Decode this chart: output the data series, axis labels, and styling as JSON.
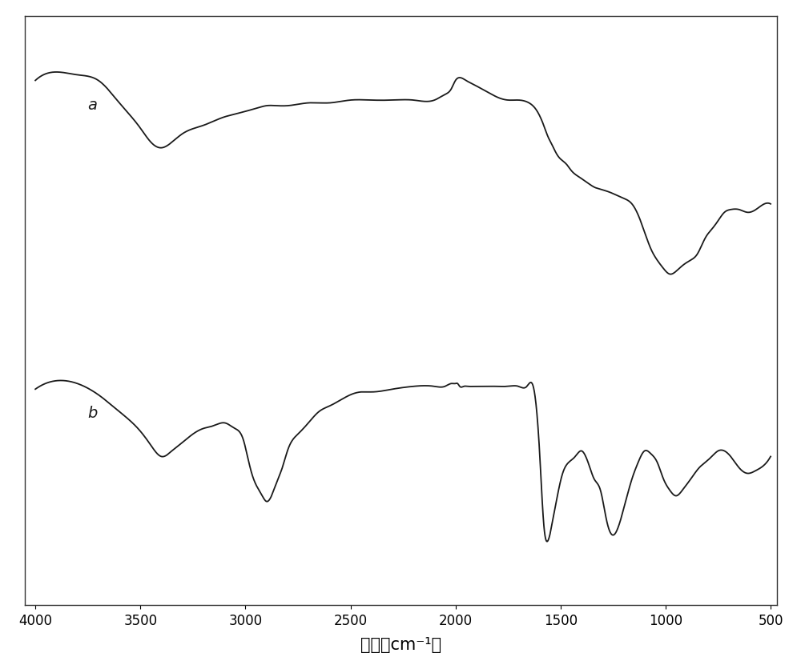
{
  "xlabel": "波长（cm⁻¹）",
  "xlabel_fontsize": 15,
  "xticks": [
    4000,
    3500,
    3000,
    2500,
    2000,
    1500,
    1000,
    500
  ],
  "background_color": "#ffffff",
  "line_color": "#1a1a1a",
  "label_a": "a",
  "label_b": "b",
  "label_fontsize": 14,
  "figsize": [
    10.0,
    8.37
  ],
  "dpi": 100,
  "curve_a_kx": [
    4000,
    3900,
    3800,
    3700,
    3600,
    3500,
    3450,
    3400,
    3350,
    3300,
    3200,
    3100,
    3050,
    3000,
    2950,
    2900,
    2850,
    2800,
    2700,
    2600,
    2500,
    2400,
    2300,
    2200,
    2100,
    2050,
    2020,
    2000,
    1980,
    1950,
    1900,
    1850,
    1800,
    1750,
    1700,
    1650,
    1620,
    1580,
    1560,
    1540,
    1520,
    1500,
    1470,
    1450,
    1420,
    1380,
    1340,
    1300,
    1260,
    1230,
    1200,
    1160,
    1130,
    1100,
    1070,
    1040,
    1010,
    980,
    950,
    920,
    880,
    850,
    810,
    780,
    750,
    720,
    690,
    650,
    610,
    570,
    530,
    500
  ],
  "curve_a_ky": [
    0.82,
    0.85,
    0.84,
    0.82,
    0.74,
    0.65,
    0.6,
    0.58,
    0.6,
    0.63,
    0.66,
    0.69,
    0.7,
    0.71,
    0.72,
    0.73,
    0.73,
    0.73,
    0.74,
    0.74,
    0.75,
    0.75,
    0.75,
    0.75,
    0.75,
    0.77,
    0.79,
    0.82,
    0.83,
    0.82,
    0.8,
    0.78,
    0.76,
    0.75,
    0.75,
    0.74,
    0.72,
    0.66,
    0.62,
    0.59,
    0.56,
    0.54,
    0.52,
    0.5,
    0.48,
    0.46,
    0.44,
    0.43,
    0.42,
    0.41,
    0.4,
    0.38,
    0.34,
    0.28,
    0.22,
    0.18,
    0.15,
    0.13,
    0.14,
    0.16,
    0.18,
    0.2,
    0.26,
    0.29,
    0.32,
    0.35,
    0.36,
    0.36,
    0.35,
    0.36,
    0.38,
    0.38
  ],
  "curve_b_kx": [
    4000,
    3900,
    3800,
    3700,
    3600,
    3500,
    3450,
    3400,
    3350,
    3300,
    3250,
    3200,
    3150,
    3100,
    3050,
    3010,
    2990,
    2970,
    2950,
    2920,
    2900,
    2870,
    2850,
    2820,
    2800,
    2750,
    2700,
    2650,
    2600,
    2550,
    2500,
    2450,
    2400,
    2300,
    2200,
    2100,
    2050,
    2020,
    2010,
    2000,
    1990,
    1980,
    1960,
    1940,
    1900,
    1850,
    1800,
    1750,
    1700,
    1660,
    1630,
    1600,
    1580,
    1560,
    1540,
    1520,
    1490,
    1460,
    1430,
    1400,
    1380,
    1360,
    1340,
    1310,
    1280,
    1250,
    1220,
    1190,
    1160,
    1130,
    1100,
    1070,
    1040,
    1010,
    980,
    950,
    920,
    880,
    840,
    810,
    780,
    750,
    720,
    690,
    650,
    610,
    570,
    530,
    500
  ],
  "curve_b_ky": [
    -0.28,
    -0.25,
    -0.26,
    -0.3,
    -0.36,
    -0.43,
    -0.48,
    -0.52,
    -0.5,
    -0.47,
    -0.44,
    -0.42,
    -0.41,
    -0.4,
    -0.42,
    -0.46,
    -0.52,
    -0.58,
    -0.62,
    -0.66,
    -0.68,
    -0.65,
    -0.61,
    -0.55,
    -0.5,
    -0.44,
    -0.4,
    -0.36,
    -0.34,
    -0.32,
    -0.3,
    -0.29,
    -0.29,
    -0.28,
    -0.27,
    -0.27,
    -0.27,
    -0.26,
    -0.26,
    -0.26,
    -0.26,
    -0.27,
    -0.27,
    -0.27,
    -0.27,
    -0.27,
    -0.27,
    -0.27,
    -0.27,
    -0.27,
    -0.27,
    -0.5,
    -0.76,
    -0.82,
    -0.76,
    -0.68,
    -0.58,
    -0.54,
    -0.52,
    -0.5,
    -0.52,
    -0.56,
    -0.6,
    -0.64,
    -0.75,
    -0.8,
    -0.76,
    -0.68,
    -0.6,
    -0.54,
    -0.5,
    -0.51,
    -0.54,
    -0.6,
    -0.64,
    -0.66,
    -0.64,
    -0.6,
    -0.56,
    -0.54,
    -0.52,
    -0.5,
    -0.5,
    -0.52,
    -0.56,
    -0.58,
    -0.57,
    -0.55,
    -0.52,
    -0.5
  ]
}
